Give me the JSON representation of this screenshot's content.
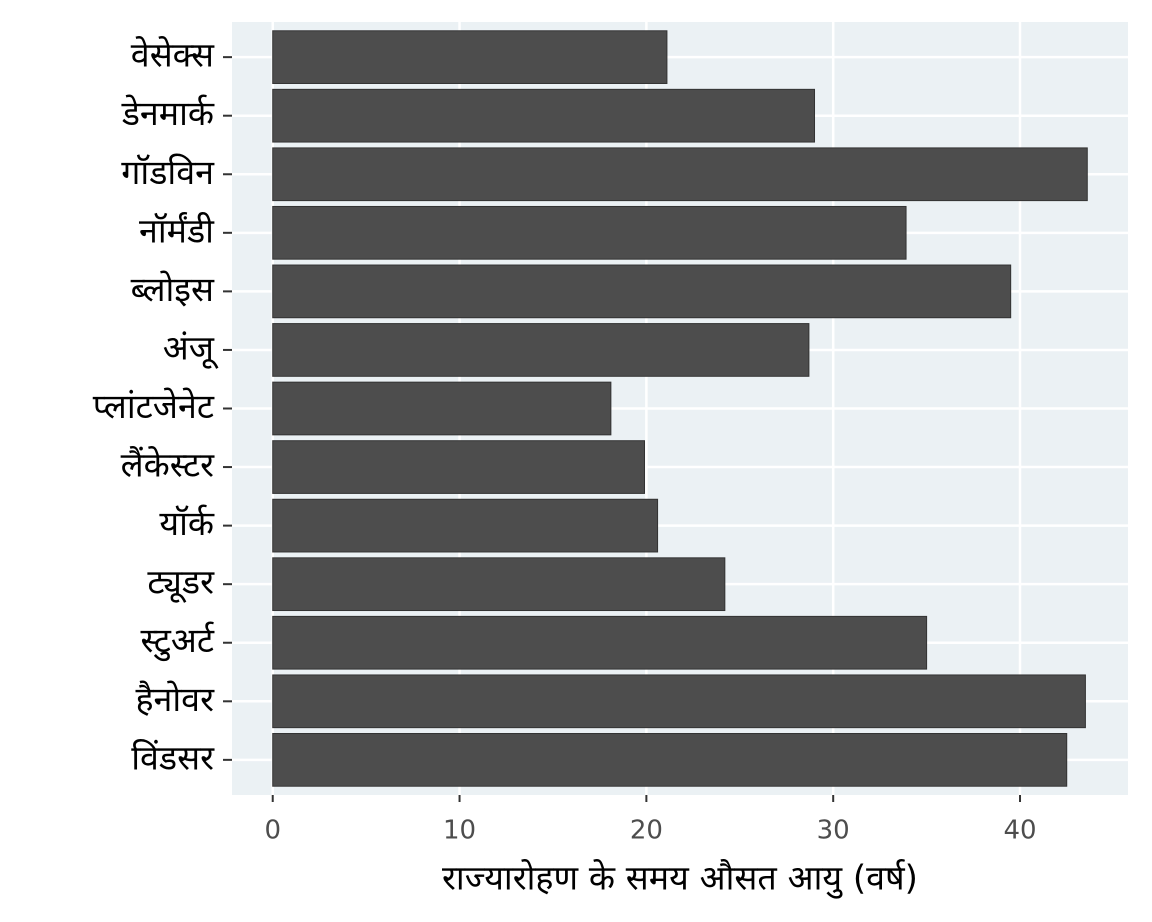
{
  "chart_data": {
    "type": "bar",
    "orientation": "horizontal",
    "x_label": "राज्यारोहण के समय औसत आयु (वर्ष)",
    "categories": [
      "वेसेक्स",
      "डेनमार्क",
      "गॉडविन",
      "नॉर्मंडी",
      "ब्लोइस",
      "अंजू",
      "प्लांटजेनेट",
      "लैंकेस्टर",
      "यॉर्क",
      "ट्यूडर",
      "स्टुअर्ट",
      "हैनोवर",
      "विंडसर"
    ],
    "values": [
      21.1,
      29.0,
      43.6,
      33.9,
      39.5,
      28.7,
      18.1,
      19.9,
      20.6,
      24.2,
      35.0,
      43.5,
      42.5
    ],
    "color": "#4d4d4d",
    "ylim": [
      -2.18,
      45.78
    ],
    "yticks": [
      0,
      10,
      20,
      30,
      40
    ],
    "grid": true
  }
}
